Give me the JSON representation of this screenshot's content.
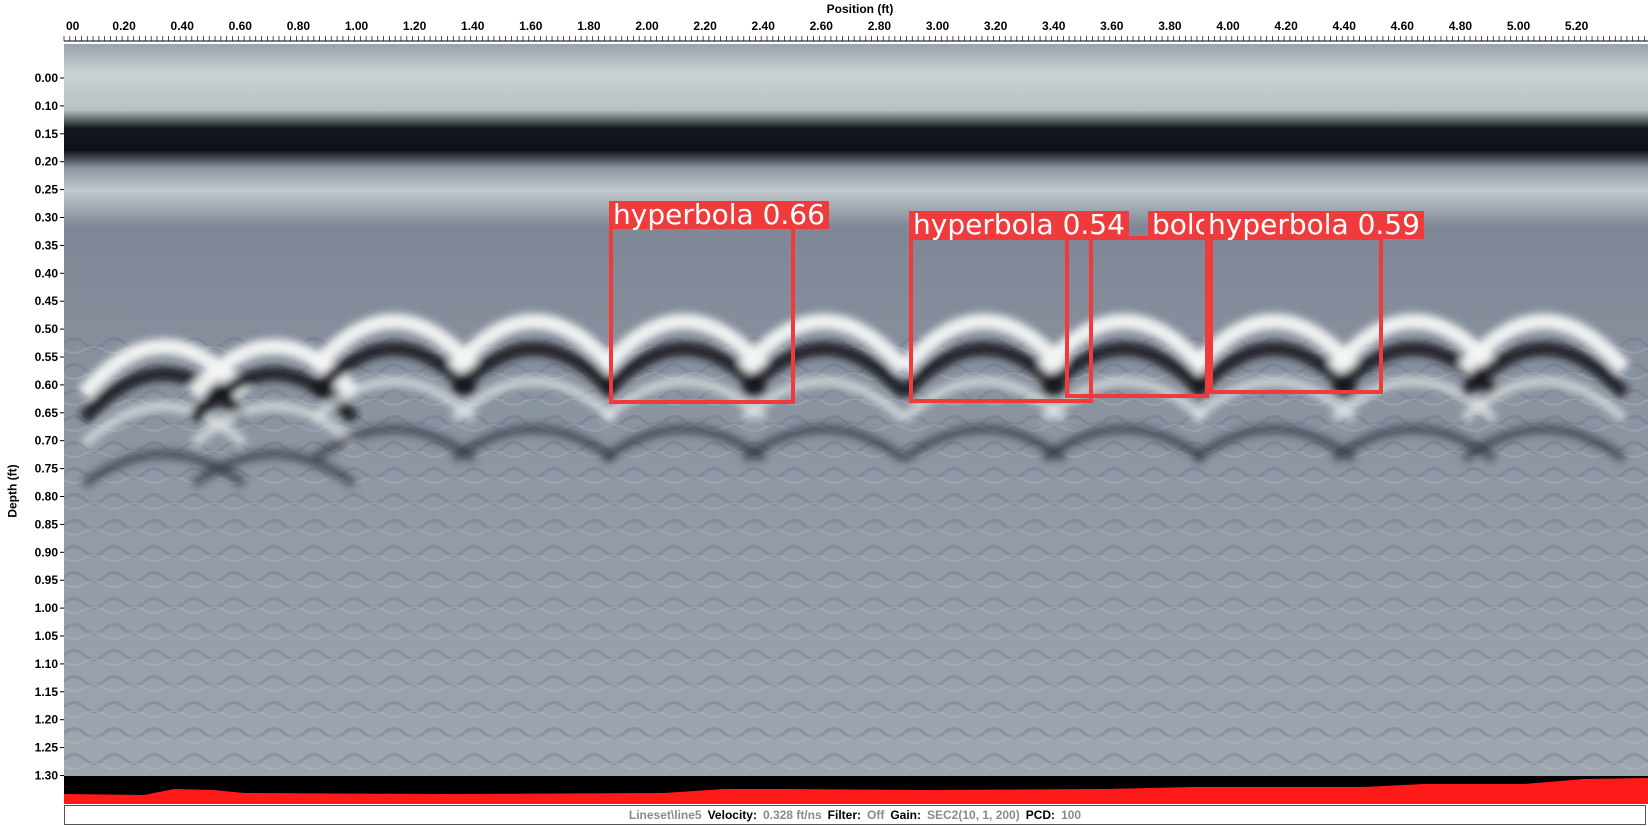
{
  "top_axis": {
    "title": "Position (ft)",
    "ticks": [
      "00",
      "0.20",
      "0.40",
      "0.60",
      "0.80",
      "1.00",
      "1.20",
      "1.40",
      "1.60",
      "1.80",
      "2.00",
      "2.20",
      "2.40",
      "2.60",
      "2.80",
      "3.00",
      "3.20",
      "3.40",
      "3.60",
      "3.80",
      "4.00",
      "4.20",
      "4.40",
      "4.60",
      "4.80",
      "5.00",
      "5.20"
    ]
  },
  "left_axis": {
    "title": "Depth (ft)",
    "ticks": [
      "0.00",
      "0.10",
      "0.15",
      "0.20",
      "0.25",
      "0.30",
      "0.35",
      "0.40",
      "0.45",
      "0.50",
      "0.55",
      "0.60",
      "0.65",
      "0.70",
      "0.75",
      "0.80",
      "0.85",
      "0.90",
      "0.95",
      "1.00",
      "1.05",
      "1.10",
      "1.15",
      "1.20",
      "1.25",
      "1.30"
    ]
  },
  "detections": [
    {
      "label": "hyperbola  0.66"
    },
    {
      "label": "hyperbola  0.54"
    },
    {
      "label": "bolc"
    },
    {
      "label": "hyperbola  0.59"
    }
  ],
  "status": {
    "lineset": "Lineset\\line5",
    "velocity_label": "Velocity:",
    "velocity_value": "0.328 ft/ns",
    "filter_label": "Filter:",
    "filter_value": "Off",
    "gain_label": "Gain:",
    "gain_value": "SEC2(10, 1, 200)",
    "pcd_label": "PCD:",
    "pcd_value": "100"
  },
  "colors": {
    "detection": "#ef3b3b",
    "signal_strip": "#ff1a1a"
  }
}
